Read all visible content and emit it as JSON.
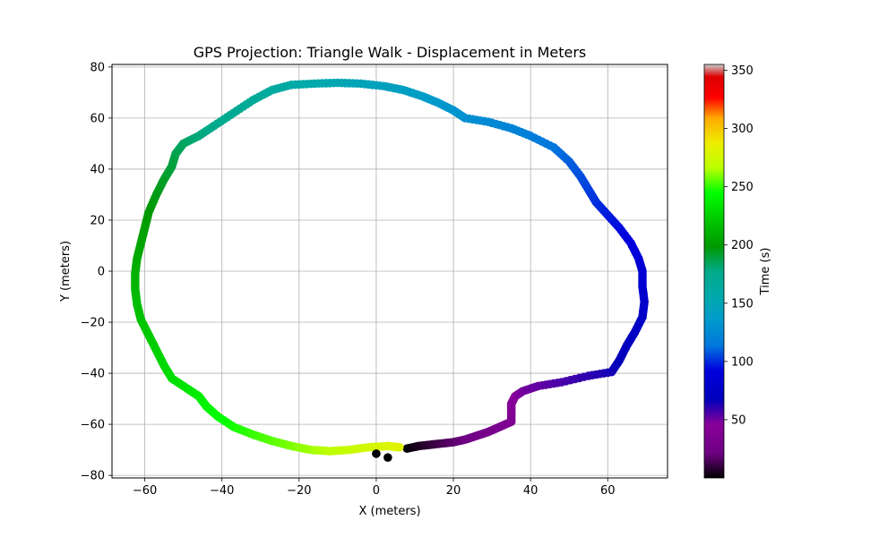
{
  "chart_data": {
    "type": "scatter",
    "title": "GPS Projection: Triangle Walk - Displacement in Meters",
    "xlabel": "X (meters)",
    "ylabel": "Y (meters)",
    "xlim": [
      -68.5,
      75.5
    ],
    "ylim": [
      -81,
      81
    ],
    "xticks": [
      -60,
      -40,
      -20,
      0,
      20,
      40,
      60
    ],
    "yticks": [
      -80,
      -60,
      -40,
      -20,
      0,
      20,
      40,
      60,
      80
    ],
    "grid": true,
    "colorbar": {
      "label": "Time (s)",
      "range": [
        0,
        355
      ],
      "ticks": [
        50,
        100,
        150,
        200,
        250,
        300,
        350
      ],
      "colormap": "nipy_spectral"
    },
    "path": {
      "points": [
        [
          8,
          -69.5,
          0
        ],
        [
          11,
          -68.5,
          5
        ],
        [
          14,
          -68,
          9
        ],
        [
          17,
          -67.5,
          13
        ],
        [
          20,
          -67,
          17
        ],
        [
          23,
          -66,
          21
        ],
        [
          26,
          -64.5,
          25
        ],
        [
          29,
          -63,
          29
        ],
        [
          32,
          -61,
          33
        ],
        [
          35,
          -59,
          37
        ],
        [
          35,
          -55,
          40
        ],
        [
          35,
          -52,
          43
        ],
        [
          36,
          -49,
          46
        ],
        [
          38,
          -47,
          49
        ],
        [
          42,
          -45,
          52
        ],
        [
          48,
          -43.5,
          56
        ],
        [
          55,
          -41,
          60
        ],
        [
          61,
          -39.5,
          64
        ],
        [
          63,
          -35,
          67
        ],
        [
          65,
          -29,
          70
        ],
        [
          67,
          -24,
          73
        ],
        [
          69,
          -18,
          76
        ],
        [
          69.5,
          -12,
          79
        ],
        [
          69,
          -6,
          82
        ],
        [
          69,
          0,
          85
        ],
        [
          68,
          5,
          88
        ],
        [
          66,
          11,
          91
        ],
        [
          63,
          17,
          94
        ],
        [
          60,
          22,
          97
        ],
        [
          57,
          27,
          100
        ],
        [
          55,
          32,
          103
        ],
        [
          53,
          37,
          106
        ],
        [
          50,
          43,
          109
        ],
        [
          46,
          48.5,
          113
        ],
        [
          40,
          53,
          117
        ],
        [
          35,
          56,
          121
        ],
        [
          29,
          58.5,
          125
        ],
        [
          23,
          60,
          129
        ],
        [
          20,
          63,
          132
        ],
        [
          16,
          66,
          135
        ],
        [
          12,
          68.5,
          138
        ],
        [
          7,
          71,
          141
        ],
        [
          2,
          72.5,
          144
        ],
        [
          -4,
          73.5,
          147
        ],
        [
          -10,
          73.8,
          151
        ],
        [
          -16,
          73.5,
          155
        ],
        [
          -22,
          73,
          159
        ],
        [
          -27,
          71,
          163
        ],
        [
          -32,
          67,
          167
        ],
        [
          -37,
          62,
          171
        ],
        [
          -42,
          57,
          175
        ],
        [
          -46,
          53,
          179
        ],
        [
          -50,
          50,
          183
        ],
        [
          -52,
          46,
          186
        ],
        [
          -53,
          41,
          189
        ],
        [
          -55,
          36,
          192
        ],
        [
          -57,
          30,
          195
        ],
        [
          -59,
          23,
          198
        ],
        [
          -60,
          17,
          201
        ],
        [
          -61,
          11,
          204
        ],
        [
          -62,
          5,
          207
        ],
        [
          -62.5,
          -1,
          210
        ],
        [
          -62.5,
          -7,
          213
        ],
        [
          -62,
          -13,
          216
        ],
        [
          -61,
          -19,
          219
        ],
        [
          -59,
          -25,
          222
        ],
        [
          -57,
          -31,
          225
        ],
        [
          -55,
          -37,
          228
        ],
        [
          -53,
          -42,
          231
        ],
        [
          -49,
          -46,
          234
        ],
        [
          -46,
          -49,
          237
        ],
        [
          -44,
          -53,
          240
        ],
        [
          -41,
          -57,
          243
        ],
        [
          -37,
          -61,
          247
        ],
        [
          -32,
          -64,
          251
        ],
        [
          -27,
          -66.5,
          255
        ],
        [
          -22,
          -68.5,
          259
        ],
        [
          -17,
          -70,
          263
        ],
        [
          -12,
          -70.5,
          267
        ],
        [
          -7,
          -70,
          271
        ],
        [
          -2,
          -69,
          275
        ],
        [
          3,
          -68.5,
          279
        ],
        [
          6,
          -69,
          282
        ]
      ],
      "outliers": [
        [
          0,
          -71.5
        ],
        [
          3,
          -73
        ]
      ]
    }
  }
}
